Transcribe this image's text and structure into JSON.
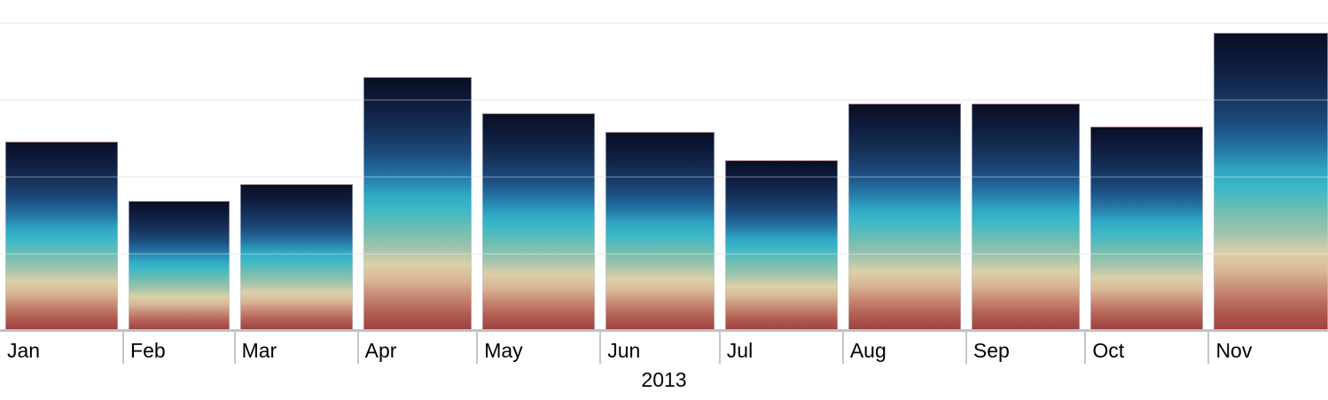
{
  "chart_data": {
    "type": "bar",
    "title": "",
    "xlabel": "2013",
    "ylabel": "",
    "x_scale": "time",
    "x_domain": [
      "Jan 1, 2013",
      "Dec 1, 2013"
    ],
    "categories": [
      "Jan",
      "Feb",
      "Mar",
      "Apr",
      "May",
      "Jun",
      "Jul",
      "Aug",
      "Sep",
      "Oct",
      "Nov"
    ],
    "months": [
      {
        "label": "Jan",
        "days": 31,
        "value": 2.45
      },
      {
        "label": "Feb",
        "days": 28,
        "value": 1.68
      },
      {
        "label": "Mar",
        "days": 31,
        "value": 1.9
      },
      {
        "label": "Apr",
        "days": 30,
        "value": 3.29
      },
      {
        "label": "May",
        "days": 31,
        "value": 2.82
      },
      {
        "label": "Jun",
        "days": 30,
        "value": 2.58
      },
      {
        "label": "Jul",
        "days": 31,
        "value": 2.21
      },
      {
        "label": "Aug",
        "days": 31,
        "value": 2.95
      },
      {
        "label": "Sep",
        "days": 30,
        "value": 2.95
      },
      {
        "label": "Oct",
        "days": 31,
        "value": 2.65
      },
      {
        "label": "Nov",
        "days": 30,
        "value": 3.87
      }
    ],
    "ylim": [
      0,
      4.3
    ],
    "gridline_values": [
      1,
      2,
      3,
      4
    ],
    "y_tick_labels_visible": false,
    "legend": "none",
    "grid": "on",
    "colors": {
      "background": "#ffffff",
      "gridline": "#f0f0f0",
      "gridline_over_bar": "rgba(255,255,255,0.22)",
      "axis_line": "#c2c2c2",
      "tick": "#c6c6c6",
      "label_text": "#000000",
      "bar_gradient_top_to_bottom": [
        {
          "pos": 0,
          "color": "#0a0e24"
        },
        {
          "pos": 10,
          "color": "#0e1c3d"
        },
        {
          "pos": 20,
          "color": "#153058"
        },
        {
          "pos": 30,
          "color": "#1c4a7d"
        },
        {
          "pos": 38,
          "color": "#2371a2"
        },
        {
          "pos": 46,
          "color": "#2fa6c3"
        },
        {
          "pos": 52,
          "color": "#3cb8c6"
        },
        {
          "pos": 60,
          "color": "#6fbeb3"
        },
        {
          "pos": 68,
          "color": "#a5c4ac"
        },
        {
          "pos": 74,
          "color": "#dcd0a8"
        },
        {
          "pos": 80,
          "color": "#d9b897"
        },
        {
          "pos": 86,
          "color": "#c98c76"
        },
        {
          "pos": 93,
          "color": "#b25f53"
        },
        {
          "pos": 100,
          "color": "#9e4042"
        }
      ]
    }
  }
}
